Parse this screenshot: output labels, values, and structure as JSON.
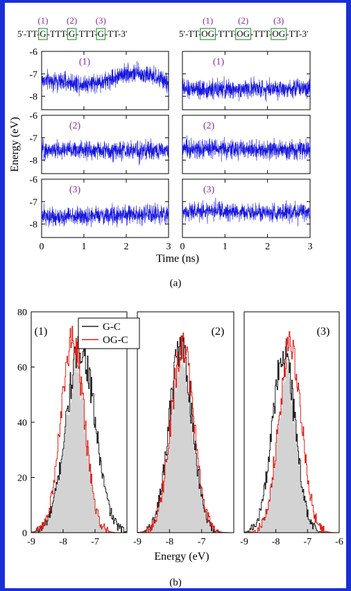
{
  "figure": {
    "panel_a_caption": "(a)",
    "panel_b_caption": "(b)"
  },
  "sequences": {
    "left": [
      {
        "t": "5'-TT-",
        "box": false
      },
      {
        "t": "G",
        "box": true
      },
      {
        "t": "-TTT-",
        "box": false
      },
      {
        "t": "G",
        "box": true
      },
      {
        "t": "-TTT-",
        "box": false
      },
      {
        "t": "G",
        "box": true
      },
      {
        "t": "-TT-3'",
        "box": false
      }
    ],
    "right": [
      {
        "t": "5'-TT-",
        "box": false
      },
      {
        "t": "OG",
        "box": true
      },
      {
        "t": "-TTT-",
        "box": false
      },
      {
        "t": "OG",
        "box": true
      },
      {
        "t": "-TTT-",
        "box": false
      },
      {
        "t": "OG",
        "box": true
      },
      {
        "t": "-TT-3'",
        "box": false
      }
    ],
    "site_labels": [
      "(1)",
      "(2)",
      "(3)"
    ],
    "site_color": "#8b2a9e",
    "box_color": "#2e9a3a"
  },
  "chart_data": [
    {
      "type": "line",
      "panel": "a",
      "xlabel": "Time (ns)",
      "ylabel": "Energy (eV)",
      "xlim": [
        0,
        3
      ],
      "ylim": [
        -8.6,
        -6
      ],
      "x_ticks": [
        0,
        1,
        2,
        3
      ],
      "y_ticks": [
        -8,
        -7,
        -6
      ],
      "line_color": "#1515e0",
      "label_color": "#8b2a9e",
      "subplots": [
        {
          "row": 1,
          "col": "G",
          "label": "(1)",
          "mean_profile": [
            [
              0,
              -7.3
            ],
            [
              0.5,
              -7.35
            ],
            [
              1.0,
              -7.45
            ],
            [
              1.5,
              -7.35
            ],
            [
              2.0,
              -6.95
            ],
            [
              2.5,
              -7.05
            ],
            [
              2.9,
              -7.3
            ],
            [
              3.0,
              -7.55
            ]
          ],
          "spread": 0.35
        },
        {
          "row": 1,
          "col": "OG",
          "label": "(1)",
          "mean_profile": [
            [
              0,
              -7.7
            ],
            [
              1.0,
              -7.7
            ],
            [
              2.0,
              -7.65
            ],
            [
              3.0,
              -7.6
            ]
          ],
          "spread": 0.35
        },
        {
          "row": 2,
          "col": "G",
          "label": "(2)",
          "mean_profile": [
            [
              0,
              -7.55
            ],
            [
              1.0,
              -7.55
            ],
            [
              2.0,
              -7.6
            ],
            [
              3.0,
              -7.55
            ]
          ],
          "spread": 0.35
        },
        {
          "row": 2,
          "col": "OG",
          "label": "(2)",
          "mean_profile": [
            [
              0,
              -7.5
            ],
            [
              1.0,
              -7.5
            ],
            [
              2.0,
              -7.55
            ],
            [
              3.0,
              -7.55
            ]
          ],
          "spread": 0.35
        },
        {
          "row": 3,
          "col": "G",
          "label": "(3)",
          "mean_profile": [
            [
              0,
              -7.65
            ],
            [
              1.0,
              -7.65
            ],
            [
              2.0,
              -7.6
            ],
            [
              3.0,
              -7.55
            ]
          ],
          "spread": 0.35
        },
        {
          "row": 3,
          "col": "OG",
          "label": "(3)",
          "mean_profile": [
            [
              0,
              -7.4
            ],
            [
              1.0,
              -7.45
            ],
            [
              2.0,
              -7.5
            ],
            [
              3.0,
              -7.5
            ]
          ],
          "spread": 0.35
        }
      ]
    },
    {
      "type": "area",
      "panel": "b",
      "xlabel": "Energy (eV)",
      "ylabel": "",
      "ylim": [
        0,
        80
      ],
      "y_ticks": [
        0,
        20,
        40,
        60,
        80
      ],
      "fill_color": "#d3d3d3",
      "legend": {
        "placement": "top",
        "entries": [
          {
            "name": "G-C",
            "color": "#222222"
          },
          {
            "name": "OG-C",
            "color": "#e0201a"
          }
        ]
      },
      "subplots": [
        {
          "label": "(1)",
          "xlim": [
            -9,
            -6.0
          ],
          "x_ticks": [
            -9,
            -8,
            -7
          ],
          "series": [
            {
              "name": "G-C",
              "color": "#222222",
              "mean": -7.45,
              "sd": 0.45,
              "peak": 67
            },
            {
              "name": "OG-C",
              "color": "#e0201a",
              "mean": -7.7,
              "sd": 0.36,
              "peak": 70
            }
          ]
        },
        {
          "label": "(2)",
          "xlim": [
            -9,
            -6.0
          ],
          "x_ticks": [
            -9,
            -8,
            -7
          ],
          "series": [
            {
              "name": "G-C",
              "color": "#222222",
              "mean": -7.65,
              "sd": 0.36,
              "peak": 67
            },
            {
              "name": "OG-C",
              "color": "#e0201a",
              "mean": -7.6,
              "sd": 0.36,
              "peak": 67
            }
          ]
        },
        {
          "label": "(3)",
          "xlim": [
            -9,
            -6
          ],
          "x_ticks": [
            -9,
            -8,
            -7,
            -6
          ],
          "series": [
            {
              "name": "G-C",
              "color": "#222222",
              "mean": -7.75,
              "sd": 0.36,
              "peak": 65
            },
            {
              "name": "OG-C",
              "color": "#e0201a",
              "mean": -7.55,
              "sd": 0.36,
              "peak": 68
            }
          ]
        }
      ]
    }
  ]
}
